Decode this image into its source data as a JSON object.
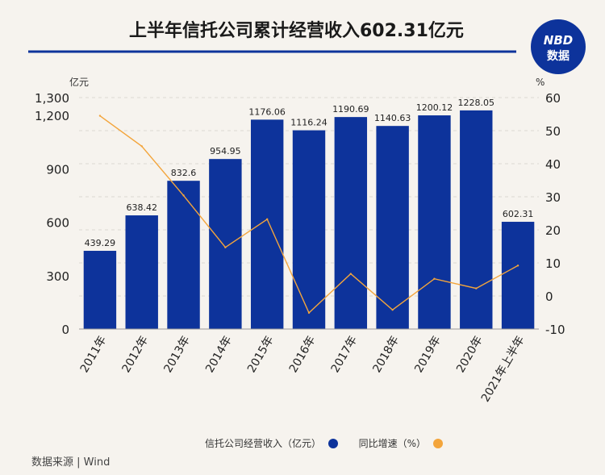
{
  "header": {
    "title": "上半年信托公司累计经营收入602.31亿元",
    "logo_line1": "NBD",
    "logo_line2": "数据"
  },
  "source": "数据来源 | Wind",
  "colors": {
    "bar": "#0d339b",
    "line": "#f3a53c",
    "title_rule": "#0d339b",
    "logo_bg": "#0d339b",
    "logo_accent": "#e2202a"
  },
  "chart_data": {
    "type": "bar",
    "categories": [
      "2011年",
      "2012年",
      "2013年",
      "2014年",
      "2015年",
      "2016年",
      "2017年",
      "2018年",
      "2019年",
      "2020年",
      "2021年上半年"
    ],
    "series": [
      {
        "name": "信托公司经营收入（亿元）",
        "type": "bar",
        "axis": "left",
        "values": [
          439.29,
          638.42,
          832.6,
          954.95,
          1176.06,
          1116.24,
          1190.69,
          1140.63,
          1200.12,
          1228.05,
          602.31
        ],
        "labels": [
          "439.29",
          "638.42",
          "832.6",
          "954.95",
          "1176.06",
          "1116.24",
          "1190.69",
          "1140.63",
          "1200.12",
          "1228.05",
          "602.31"
        ]
      },
      {
        "name": "同比增速（%）",
        "type": "line",
        "axis": "right",
        "values": [
          54.5,
          45.3,
          30.4,
          14.7,
          23.2,
          -5.1,
          6.7,
          -4.2,
          5.2,
          2.3,
          9.2
        ]
      }
    ],
    "y_left": {
      "unit": "亿元",
      "range": [
        0,
        1300
      ],
      "ticks": [
        0,
        300,
        600,
        900,
        1200,
        1300
      ],
      "tick_labels": [
        "0",
        "300",
        "600",
        "900",
        "1,200",
        "1,300"
      ]
    },
    "y_right": {
      "unit": "%",
      "range": [
        -10,
        60
      ],
      "ticks": [
        -10,
        0,
        10,
        20,
        30,
        40,
        50,
        60
      ],
      "tick_labels": [
        "-10",
        "0",
        "10",
        "20",
        "30",
        "40",
        "50",
        "60"
      ]
    },
    "grid": true,
    "legend_position": "bottom"
  }
}
